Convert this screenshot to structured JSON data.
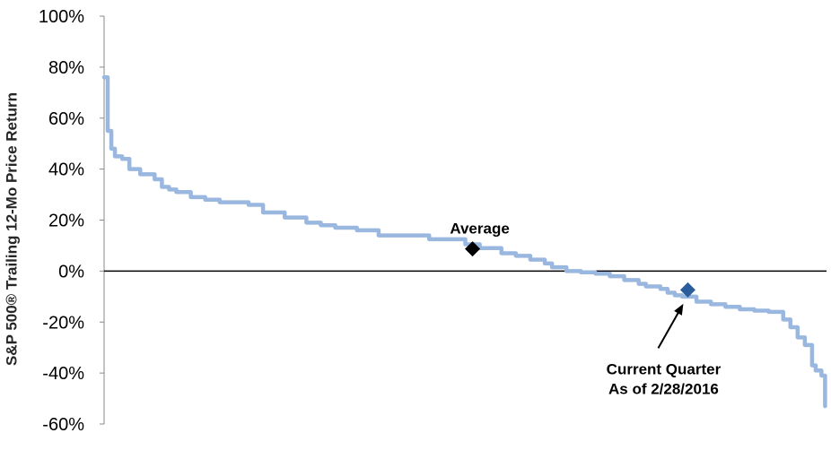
{
  "chart_data": {
    "type": "line",
    "title": "",
    "xlabel": "",
    "ylabel": "S&P 500® Trailing 12-Mo Price Return",
    "ylim": [
      -60,
      100
    ],
    "yticks": [
      -60,
      -40,
      -20,
      0,
      20,
      40,
      60,
      80,
      100
    ],
    "ytick_labels": [
      "-60%",
      "-40%",
      "-20%",
      "0%",
      "20%",
      "40%",
      "60%",
      "80%",
      "100%"
    ],
    "grid": false,
    "zero_line": true,
    "xlim": [
      0,
      100
    ],
    "series": [
      {
        "color": "#9ab7df",
        "x": [
          0,
          0.5,
          1,
          1.5,
          2.5,
          3.5,
          5,
          7,
          8,
          9,
          10,
          12,
          14,
          16,
          18,
          20,
          22,
          25,
          28,
          30,
          32,
          35,
          38,
          40,
          45,
          50,
          52,
          55,
          57,
          59,
          61,
          62,
          64,
          66,
          68,
          70,
          72,
          74,
          75,
          77,
          78,
          79,
          80,
          82,
          84,
          86,
          88,
          90,
          92,
          94,
          95,
          96,
          97,
          98,
          98.5,
          99.3,
          99.8
        ],
        "y": [
          76,
          55,
          48,
          45,
          44,
          40,
          38,
          36,
          33,
          32,
          31,
          29,
          28,
          27,
          27,
          26,
          23,
          21,
          19,
          18,
          17,
          16,
          14,
          14,
          12.5,
          10.5,
          9,
          7,
          6,
          4.5,
          3,
          1.5,
          0,
          -0.5,
          -1,
          -2,
          -3.5,
          -5,
          -6,
          -7,
          -8.5,
          -9.5,
          -10,
          -12,
          -13,
          -14,
          -15,
          -15.5,
          -16,
          -19,
          -22,
          -26,
          -29,
          -37,
          -39,
          -41,
          -53
        ]
      }
    ],
    "points": [
      {
        "label": "Average",
        "x": 51,
        "y": 8.7,
        "color": "#000000"
      },
      {
        "label": "Current Quarter",
        "x": 80.8,
        "y": -7.4,
        "color": "#2b5c9b"
      }
    ],
    "annotations": [
      {
        "text": "Average"
      },
      {
        "lines": [
          "Current Quarter",
          "As of 2/28/2016"
        ]
      }
    ]
  }
}
